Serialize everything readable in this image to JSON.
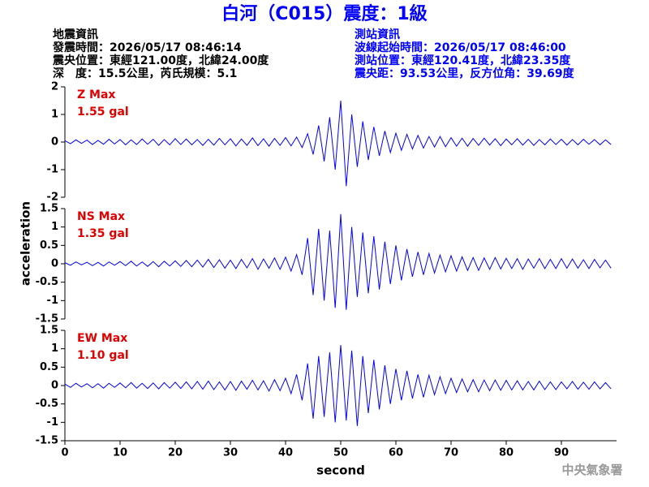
{
  "header": {
    "title": "白河（C015）震度：1級",
    "earthquake_info": [
      "地震資訊",
      "發震時間：2026/05/17 08:46:14",
      "震央位置：東經121.00度，北緯24.00度",
      "深　度：15.5公里，芮氏規模：5.1"
    ],
    "station_info": [
      "測站資訊",
      "波線起始時間：2026/05/17 08:46:00",
      "測站位置：東經120.41度，北緯23.35度",
      "震央距：93.53公里，反方位角：39.69度"
    ],
    "footer": "中央氣象署"
  },
  "chart_data": [
    {
      "type": "line",
      "annotations": [
        "Z Max",
        "1.55 gal"
      ],
      "color": "#0000ff",
      "xlim": [
        0,
        100
      ],
      "ylim": [
        -2,
        2
      ],
      "yticks": [
        -2,
        -1,
        0,
        1,
        2
      ],
      "x": [
        0,
        1,
        2,
        3,
        4,
        5,
        6,
        7,
        8,
        9,
        10,
        11,
        12,
        13,
        14,
        15,
        16,
        17,
        18,
        19,
        20,
        21,
        22,
        23,
        24,
        25,
        26,
        27,
        28,
        29,
        30,
        31,
        32,
        33,
        34,
        35,
        36,
        37,
        38,
        39,
        40,
        41,
        42,
        43,
        44,
        45,
        46,
        47,
        48,
        49,
        50,
        51,
        52,
        53,
        54,
        55,
        56,
        57,
        58,
        59,
        60,
        61,
        62,
        63,
        64,
        65,
        66,
        67,
        68,
        69,
        70,
        71,
        72,
        73,
        74,
        75,
        76,
        77,
        78,
        79,
        80,
        81,
        82,
        83,
        84,
        85,
        86,
        87,
        88,
        89,
        90,
        91,
        92,
        93,
        94,
        95,
        96,
        97,
        98,
        99
      ],
      "values": [
        0.05,
        -0.06,
        0.08,
        -0.05,
        0.07,
        -0.09,
        0.06,
        -0.08,
        0.1,
        -0.07,
        0.09,
        -0.1,
        0.08,
        -0.09,
        0.11,
        -0.08,
        0.1,
        -0.12,
        0.09,
        -0.1,
        0.12,
        -0.09,
        0.11,
        -0.1,
        0.09,
        -0.12,
        0.1,
        -0.11,
        0.13,
        -0.1,
        0.12,
        -0.14,
        0.11,
        -0.12,
        0.15,
        -0.13,
        0.12,
        -0.15,
        0.13,
        -0.12,
        0.16,
        -0.14,
        0.18,
        -0.2,
        0.3,
        -0.45,
        0.6,
        -0.7,
        0.9,
        -1.0,
        1.5,
        -1.6,
        1.0,
        -0.9,
        0.75,
        -0.65,
        0.55,
        -0.5,
        0.4,
        -0.38,
        0.32,
        -0.3,
        0.28,
        -0.25,
        0.24,
        -0.22,
        0.2,
        -0.18,
        0.2,
        -0.17,
        0.16,
        -0.15,
        0.14,
        -0.15,
        0.13,
        -0.12,
        0.14,
        -0.11,
        0.12,
        -0.13,
        0.11,
        -0.1,
        0.12,
        -0.11,
        0.1,
        -0.12,
        0.09,
        -0.1,
        0.11,
        -0.09,
        0.1,
        -0.11,
        0.09,
        -0.1,
        0.1,
        -0.08,
        0.09,
        -0.1,
        0.08,
        -0.09
      ]
    },
    {
      "type": "line",
      "annotations": [
        "NS Max",
        "1.35 gal"
      ],
      "color": "#0000ff",
      "ylabel": "acceleration",
      "xlim": [
        0,
        100
      ],
      "ylim": [
        -1.5,
        1.5
      ],
      "yticks": [
        -1.5,
        -1,
        -0.5,
        0,
        0.5,
        1,
        1.5
      ],
      "x": [
        0,
        1,
        2,
        3,
        4,
        5,
        6,
        7,
        8,
        9,
        10,
        11,
        12,
        13,
        14,
        15,
        16,
        17,
        18,
        19,
        20,
        21,
        22,
        23,
        24,
        25,
        26,
        27,
        28,
        29,
        30,
        31,
        32,
        33,
        34,
        35,
        36,
        37,
        38,
        39,
        40,
        41,
        42,
        43,
        44,
        45,
        46,
        47,
        48,
        49,
        50,
        51,
        52,
        53,
        54,
        55,
        56,
        57,
        58,
        59,
        60,
        61,
        62,
        63,
        64,
        65,
        66,
        67,
        68,
        69,
        70,
        71,
        72,
        73,
        74,
        75,
        76,
        77,
        78,
        79,
        80,
        81,
        82,
        83,
        84,
        85,
        86,
        87,
        88,
        89,
        90,
        91,
        92,
        93,
        94,
        95,
        96,
        97,
        98,
        99
      ],
      "values": [
        0.03,
        -0.04,
        0.05,
        -0.03,
        0.04,
        -0.05,
        0.04,
        -0.06,
        0.05,
        -0.04,
        0.06,
        -0.05,
        0.07,
        -0.06,
        0.05,
        -0.07,
        0.06,
        -0.08,
        0.07,
        -0.06,
        0.08,
        -0.07,
        0.09,
        -0.08,
        0.1,
        -0.09,
        0.12,
        -0.1,
        0.11,
        -0.12,
        0.1,
        -0.13,
        0.12,
        -0.11,
        0.14,
        -0.15,
        0.13,
        -0.12,
        0.16,
        -0.15,
        0.18,
        -0.2,
        0.25,
        -0.3,
        0.7,
        -0.85,
        0.95,
        -1.0,
        0.9,
        -1.2,
        1.35,
        -1.25,
        1.0,
        -0.9,
        0.85,
        -0.8,
        0.75,
        -0.7,
        0.6,
        -0.55,
        0.5,
        -0.45,
        0.4,
        -0.35,
        0.32,
        -0.3,
        0.28,
        -0.25,
        0.24,
        -0.22,
        0.22,
        -0.2,
        0.19,
        -0.18,
        0.17,
        -0.18,
        0.16,
        -0.15,
        0.17,
        -0.14,
        0.15,
        -0.13,
        0.14,
        -0.15,
        0.13,
        -0.12,
        0.14,
        -0.13,
        0.12,
        -0.13,
        0.14,
        -0.12,
        0.13,
        -0.12,
        0.11,
        -0.13,
        0.12,
        -0.11,
        0.1,
        -0.12
      ]
    },
    {
      "type": "line",
      "annotations": [
        "EW Max",
        "1.10 gal"
      ],
      "color": "#0000ff",
      "xlabel": "second",
      "xlim": [
        0,
        100
      ],
      "xticks": [
        0,
        10,
        20,
        30,
        40,
        50,
        60,
        70,
        80,
        90
      ],
      "ylim": [
        -1.5,
        1.5
      ],
      "yticks": [
        -1.5,
        -1,
        -0.5,
        0,
        0.5,
        1,
        1.5
      ],
      "x": [
        0,
        1,
        2,
        3,
        4,
        5,
        6,
        7,
        8,
        9,
        10,
        11,
        12,
        13,
        14,
        15,
        16,
        17,
        18,
        19,
        20,
        21,
        22,
        23,
        24,
        25,
        26,
        27,
        28,
        29,
        30,
        31,
        32,
        33,
        34,
        35,
        36,
        37,
        38,
        39,
        40,
        41,
        42,
        43,
        44,
        45,
        46,
        47,
        48,
        49,
        50,
        51,
        52,
        53,
        54,
        55,
        56,
        57,
        58,
        59,
        60,
        61,
        62,
        63,
        64,
        65,
        66,
        67,
        68,
        69,
        70,
        71,
        72,
        73,
        74,
        75,
        76,
        77,
        78,
        79,
        80,
        81,
        82,
        83,
        84,
        85,
        86,
        87,
        88,
        89,
        90,
        91,
        92,
        93,
        94,
        95,
        96,
        97,
        98,
        99
      ],
      "values": [
        0.04,
        -0.05,
        0.06,
        -0.04,
        0.05,
        -0.06,
        0.05,
        -0.07,
        0.06,
        -0.05,
        0.07,
        -0.06,
        0.08,
        -0.07,
        0.06,
        -0.08,
        0.07,
        -0.09,
        0.08,
        -0.07,
        0.09,
        -0.08,
        0.1,
        -0.09,
        0.11,
        -0.1,
        0.12,
        -0.11,
        0.1,
        -0.12,
        0.11,
        -0.13,
        0.12,
        -0.1,
        0.14,
        -0.12,
        0.13,
        -0.15,
        0.16,
        -0.14,
        0.2,
        -0.22,
        0.3,
        -0.4,
        0.6,
        -0.9,
        0.8,
        -0.85,
        0.9,
        -1.0,
        1.1,
        -0.95,
        0.95,
        -1.1,
        0.8,
        -0.75,
        0.7,
        -0.65,
        0.55,
        -0.5,
        0.45,
        -0.4,
        0.4,
        -0.35,
        0.3,
        -0.32,
        0.28,
        -0.25,
        0.24,
        -0.22,
        0.2,
        -0.19,
        0.18,
        -0.17,
        0.16,
        -0.17,
        0.15,
        -0.14,
        0.15,
        -0.13,
        0.14,
        -0.12,
        0.13,
        -0.12,
        0.11,
        -0.12,
        0.12,
        -0.11,
        0.1,
        -0.11,
        0.1,
        -0.09,
        0.11,
        -0.1,
        0.09,
        -0.1,
        0.1,
        -0.09,
        0.08,
        -0.09
      ]
    }
  ]
}
